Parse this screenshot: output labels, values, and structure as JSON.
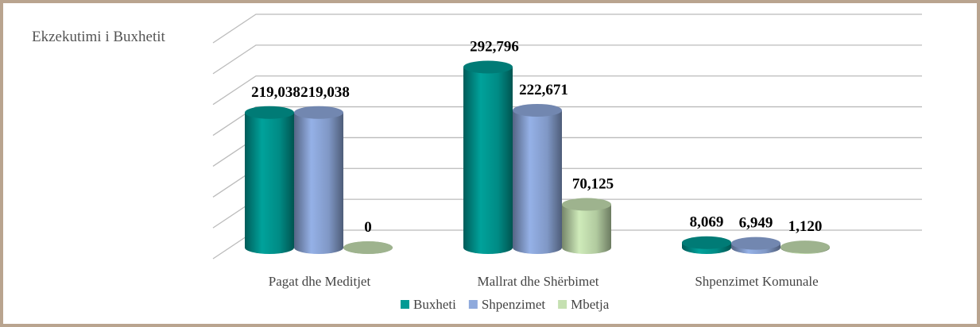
{
  "chart_data": {
    "type": "bar3d",
    "title": "Ekzekutimi i Buxhetit",
    "categories": [
      "Pagat dhe Meditjet",
      "Mallrat dhe Shërbimet",
      "Shpenzimet Komunale"
    ],
    "series": [
      {
        "name": "Buxheti",
        "color": "#009a94",
        "values": [
          219038,
          292796,
          8069
        ],
        "value_labels": [
          "219,038",
          "292,796",
          "8,069"
        ]
      },
      {
        "name": "Shpenzimet",
        "color": "#8ea9dc",
        "values": [
          219038,
          222671,
          6949
        ],
        "value_labels": [
          "219,038",
          "222,671",
          "6,949"
        ]
      },
      {
        "name": "Mbetja",
        "color": "#c5e0b1",
        "values": [
          0,
          70125,
          1120
        ],
        "value_labels": [
          "0",
          "70,125",
          "1,120"
        ]
      }
    ],
    "ylim": [
      0,
      350000
    ],
    "yticks": [
      0,
      50000,
      100000,
      150000,
      200000,
      250000,
      300000,
      350000
    ],
    "grid": true
  }
}
